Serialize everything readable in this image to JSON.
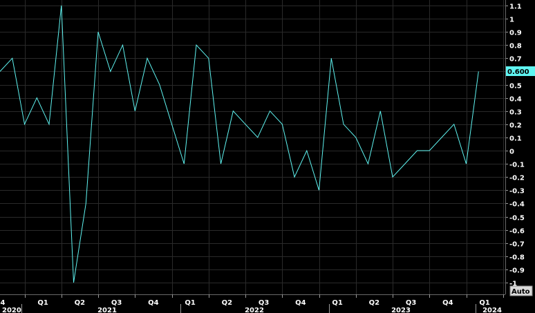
{
  "chart_data": {
    "type": "line",
    "title": "",
    "xlabel": "",
    "ylabel": "",
    "ylim": [
      -1.05,
      1.15
    ],
    "yticks": [
      1.1,
      1,
      0.9,
      0.8,
      0.7,
      0.6,
      0.5,
      0.4,
      0.3,
      0.2,
      0.1,
      0,
      -0.1,
      -0.2,
      -0.3,
      -0.4,
      -0.5,
      -0.6,
      -0.7,
      -0.8,
      -0.9,
      -1
    ],
    "ytick_labels": [
      "1.1",
      "1",
      "0.9",
      "0.8",
      "0.7",
      "",
      "0.5",
      "0.4",
      "0.3",
      "0.2",
      "0.1",
      "0",
      "-0.1",
      "-0.2",
      "-0.3",
      "-0.4",
      "-0.5",
      "-0.6",
      "-0.7",
      "-0.8",
      "-0.9",
      "-1"
    ],
    "x_quarter_labels": [
      "4",
      "Q1",
      "Q2",
      "Q3",
      "Q4",
      "Q1",
      "Q2",
      "Q3",
      "Q4",
      "Q1",
      "Q2",
      "Q3",
      "Q4",
      "Q1"
    ],
    "x_year_labels": [
      "2020",
      "2021",
      "2022",
      "2023",
      "2024"
    ],
    "grid": true,
    "series": [
      {
        "color": "#5ff5f2",
        "x": [
          "2020-11",
          "2020-12",
          "2021-01",
          "2021-02",
          "2021-03",
          "2021-04",
          "2021-05",
          "2021-06",
          "2021-07",
          "2021-08",
          "2021-09",
          "2021-10",
          "2021-11",
          "2021-12",
          "2022-01",
          "2022-02",
          "2022-03",
          "2022-04",
          "2022-05",
          "2022-06",
          "2022-07",
          "2022-08",
          "2022-09",
          "2022-10",
          "2022-11",
          "2022-12",
          "2023-01",
          "2023-02",
          "2023-03",
          "2023-04",
          "2023-05",
          "2023-06",
          "2023-07",
          "2023-08",
          "2023-09",
          "2023-10",
          "2023-11",
          "2023-12",
          "2024-01",
          "2024-02"
        ],
        "values": [
          0.6,
          0.7,
          0.2,
          0.4,
          0.2,
          1.1,
          -1.0,
          -0.4,
          0.9,
          0.6,
          0.8,
          0.3,
          0.7,
          0.5,
          0.2,
          -0.1,
          0.8,
          0.7,
          -0.1,
          0.3,
          0.2,
          0.1,
          0.3,
          0.2,
          -0.2,
          0.0,
          -0.3,
          0.7,
          0.2,
          0.1,
          -0.1,
          0.3,
          -0.2,
          -0.1,
          0.0,
          0.0,
          0.1,
          0.2,
          -0.1,
          0.6
        ]
      }
    ],
    "last_value_label": "0.600",
    "axis_mode_label": "Auto",
    "colors": {
      "background": "#000000",
      "line": "#5ff5f2",
      "last_value_bg": "#5ff5f2",
      "grid": "#2a2a2a"
    }
  }
}
